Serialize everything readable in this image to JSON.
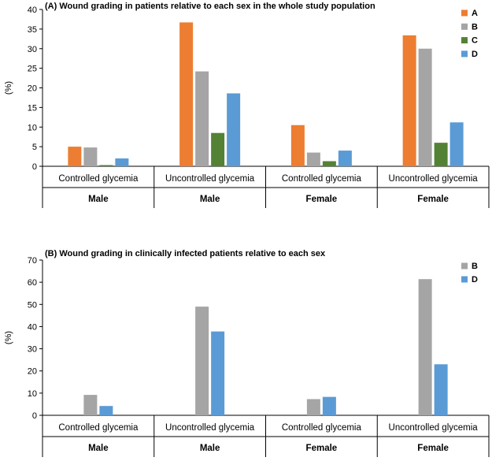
{
  "chart_data": [
    {
      "type": "bar",
      "title": "(A) Wound grading in patients relative to each sex in the whole study population",
      "ylabel": "(%)",
      "xlabel": "",
      "ylim": [
        0,
        40
      ],
      "yticks": [
        0,
        5,
        10,
        15,
        20,
        25,
        30,
        35,
        40
      ],
      "categories": [
        "Controlled glycemia",
        "Uncontrolled glycemia",
        "Controlled glycemia",
        "Uncontrolled glycemia"
      ],
      "groups": [
        "Male",
        "Male",
        "Female",
        "Female"
      ],
      "legend_position": "top-right",
      "grid": false,
      "series": [
        {
          "name": "A",
          "color": "#ED7D31",
          "values": [
            5,
            36.7,
            10.5,
            33.4
          ]
        },
        {
          "name": "B",
          "color": "#A5A5A5",
          "values": [
            4.8,
            24.2,
            3.5,
            30
          ]
        },
        {
          "name": "C",
          "color": "#548235",
          "values": [
            0.3,
            8.5,
            1.3,
            6
          ]
        },
        {
          "name": "D",
          "color": "#5B9BD5",
          "values": [
            2,
            18.6,
            4,
            11.2
          ]
        }
      ]
    },
    {
      "type": "bar",
      "title": "(B) Wound grading in clinically infected patients relative to each sex",
      "ylabel": "(%)",
      "xlabel": "",
      "ylim": [
        0,
        70
      ],
      "yticks": [
        0,
        10,
        20,
        30,
        40,
        50,
        60,
        70
      ],
      "categories": [
        "Controlled glycemia",
        "Uncontrolled glycemia",
        "Controlled glycemia",
        "Uncontrolled glycemia"
      ],
      "groups": [
        "Male",
        "Male",
        "Female",
        "Female"
      ],
      "legend_position": "top-right",
      "grid": false,
      "series": [
        {
          "name": "B",
          "color": "#A5A5A5",
          "values": [
            9.2,
            49,
            7.3,
            61.4
          ]
        },
        {
          "name": "D",
          "color": "#5B9BD5",
          "values": [
            4.2,
            37.8,
            8.3,
            23
          ]
        }
      ]
    }
  ]
}
